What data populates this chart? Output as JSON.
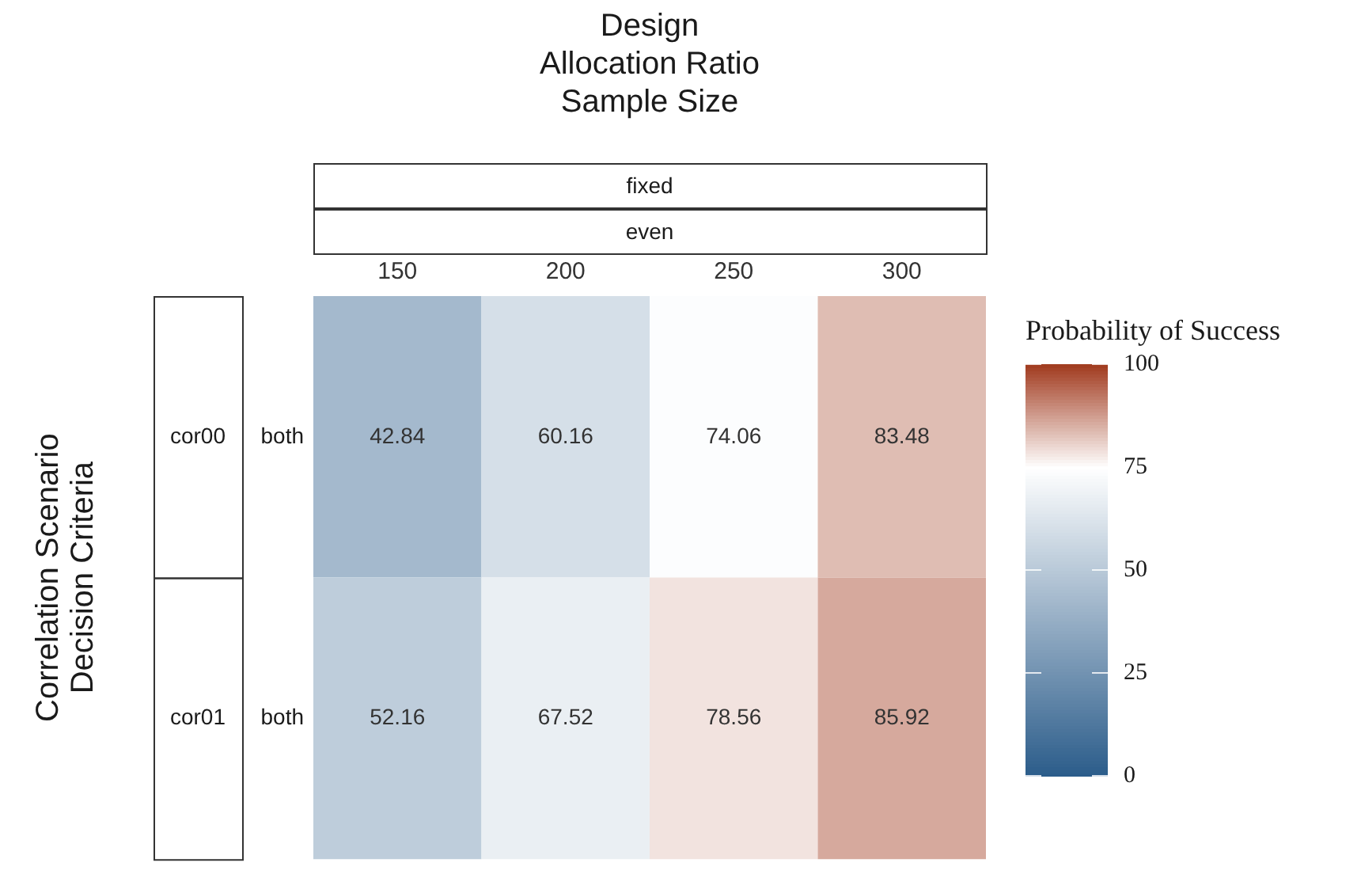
{
  "chart_data": {
    "type": "heatmap",
    "xlabel": "Design\nAllocation Ratio\nSample Size",
    "ylabel": "Correlation Scenario\nDecision Criteria",
    "clabel": "Probability of Success",
    "categories": [
      "150",
      "200",
      "250",
      "300"
    ],
    "y_categories": [
      "cor00",
      "cor01"
    ],
    "y2_categories": [
      "both",
      "both"
    ],
    "cells": [
      [
        42.84,
        60.16,
        74.06,
        83.48
      ],
      [
        52.16,
        67.52,
        78.56,
        85.92
      ]
    ],
    "clim": [
      0,
      100
    ],
    "cticks": [
      0,
      25,
      50,
      75,
      100
    ],
    "data_labels": true,
    "annotations": [
      "fixed",
      "even"
    ]
  }
}
